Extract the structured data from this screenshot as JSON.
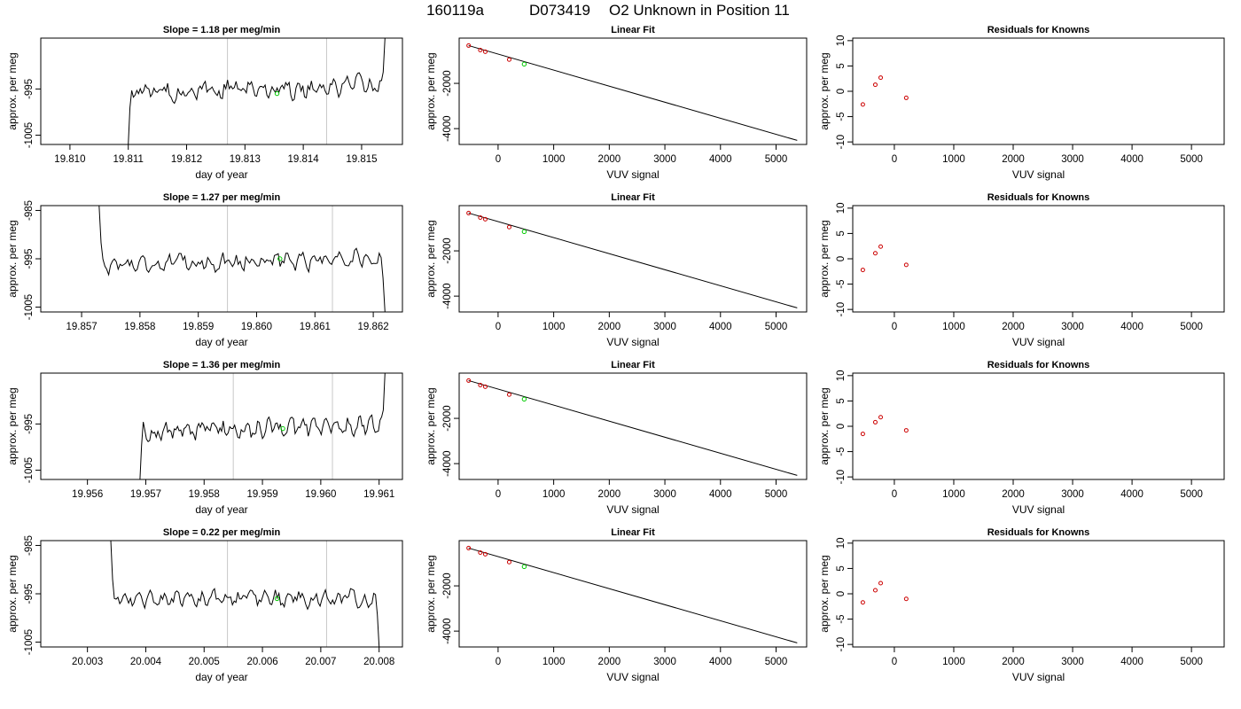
{
  "figure": {
    "title_run": "160119a",
    "title_sample": "D073419",
    "title_desc": "O2 Unknown in Position  11"
  },
  "colors": {
    "trace": "#000000",
    "known_points": "#cc0000",
    "unknown_point": "#00cc00",
    "marker_lines": "#c8c8c8",
    "fit_line": "#000000"
  },
  "rows": [
    {
      "time_panel": {
        "title": "Slope =  1.18  per meg/min",
        "xlabel": "day of year",
        "ylabel": "approx. per meg",
        "xticks": [
          "19.810",
          "19.811",
          "19.812",
          "19.813",
          "19.814",
          "19.815"
        ],
        "yticks": [
          "-1005",
          "-995"
        ]
      },
      "fit_panel": {
        "title": "Linear Fit",
        "xlabel": "VUV signal",
        "ylabel": "approx. per meg",
        "xticks": [
          "0",
          "1000",
          "2000",
          "3000",
          "4000",
          "5000"
        ],
        "yticks": [
          "-4000",
          "-2000"
        ]
      },
      "resid_panel": {
        "title": "Residuals for Knowns",
        "xlabel": "VUV signal",
        "ylabel": "approx. per meg",
        "xticks": [
          "0",
          "1000",
          "2000",
          "3000",
          "4000",
          "5000"
        ],
        "yticks": [
          "-10",
          "-5",
          "0",
          "5",
          "10"
        ]
      }
    },
    {
      "time_panel": {
        "title": "Slope =  1.27  per meg/min",
        "xlabel": "day of year",
        "ylabel": "approx. per meg",
        "xticks": [
          "19.857",
          "19.858",
          "19.859",
          "19.860",
          "19.861",
          "19.862"
        ],
        "yticks": [
          "-1005",
          "-995",
          "-985"
        ]
      },
      "fit_panel": {
        "title": "Linear Fit",
        "xlabel": "VUV signal",
        "ylabel": "approx. per meg",
        "xticks": [
          "0",
          "1000",
          "2000",
          "3000",
          "4000",
          "5000"
        ],
        "yticks": [
          "-4000",
          "-2000"
        ]
      },
      "resid_panel": {
        "title": "Residuals for Knowns",
        "xlabel": "VUV signal",
        "ylabel": "approx. per meg",
        "xticks": [
          "0",
          "1000",
          "2000",
          "3000",
          "4000",
          "5000"
        ],
        "yticks": [
          "-10",
          "-5",
          "0",
          "5",
          "10"
        ]
      }
    },
    {
      "time_panel": {
        "title": "Slope =  1.36  per meg/min",
        "xlabel": "day of year",
        "ylabel": "approx. per meg",
        "xticks": [
          "19.956",
          "19.957",
          "19.958",
          "19.959",
          "19.960",
          "19.961"
        ],
        "yticks": [
          "-1005",
          "-995"
        ]
      },
      "fit_panel": {
        "title": "Linear Fit",
        "xlabel": "VUV signal",
        "ylabel": "approx. per meg",
        "xticks": [
          "0",
          "1000",
          "2000",
          "3000",
          "4000",
          "5000"
        ],
        "yticks": [
          "-4000",
          "-2000"
        ]
      },
      "resid_panel": {
        "title": "Residuals for Knowns",
        "xlabel": "VUV signal",
        "ylabel": "approx. per meg",
        "xticks": [
          "0",
          "1000",
          "2000",
          "3000",
          "4000",
          "5000"
        ],
        "yticks": [
          "-10",
          "-5",
          "0",
          "5",
          "10"
        ]
      }
    },
    {
      "time_panel": {
        "title": "Slope =  0.22  per meg/min",
        "xlabel": "day of year",
        "ylabel": "approx. per meg",
        "xticks": [
          "20.003",
          "20.004",
          "20.005",
          "20.006",
          "20.007",
          "20.008"
        ],
        "yticks": [
          "-1005",
          "-995",
          "-985"
        ]
      },
      "fit_panel": {
        "title": "Linear Fit",
        "xlabel": "VUV signal",
        "ylabel": "approx. per meg",
        "xticks": [
          "0",
          "1000",
          "2000",
          "3000",
          "4000",
          "5000"
        ],
        "yticks": [
          "-4000",
          "-2000"
        ]
      },
      "resid_panel": {
        "title": "Residuals for Knowns",
        "xlabel": "VUV signal",
        "ylabel": "approx. per meg",
        "xticks": [
          "0",
          "1000",
          "2000",
          "3000",
          "4000",
          "5000"
        ],
        "yticks": [
          "-10",
          "-5",
          "0",
          "5",
          "10"
        ]
      }
    }
  ],
  "chart_data": [
    {
      "type": "line",
      "title": "Slope =  1.18  per meg/min",
      "xlabel": "day of year",
      "ylabel": "approx. per meg",
      "xlim": [
        19.8095,
        19.8157
      ],
      "ylim": [
        -1007,
        -984
      ],
      "trace_window": [
        19.811,
        19.8154
      ],
      "trace_level": -995,
      "trace_noise": 2.3,
      "trace_drift": 1.5,
      "trace_start": -1007,
      "trace_end": -984,
      "vlines": [
        19.8127,
        19.8144
      ],
      "unknown_point": {
        "x": 19.81355,
        "y": -996
      }
    },
    {
      "type": "line",
      "title": "Slope =  1.27  per meg/min",
      "xlabel": "day of year",
      "ylabel": "approx. per meg",
      "xlim": [
        19.8563,
        19.8625
      ],
      "ylim": [
        -1006,
        -984
      ],
      "trace_window": [
        19.8573,
        19.8622
      ],
      "trace_level": -995.5,
      "trace_noise": 2.0,
      "trace_drift": 1.5,
      "trace_start": -984,
      "trace_end": -1006,
      "vlines": [
        19.8595,
        19.8613
      ],
      "unknown_point": {
        "x": 19.8604,
        "y": -995
      }
    },
    {
      "type": "line",
      "title": "Slope =  1.36  per meg/min",
      "xlabel": "day of year",
      "ylabel": "approx. per meg",
      "xlim": [
        19.9552,
        19.9614
      ],
      "ylim": [
        -1007,
        -984
      ],
      "trace_window": [
        19.9569,
        19.9611
      ],
      "trace_level": -996,
      "trace_noise": 2.2,
      "trace_drift": 1.5,
      "trace_start": -1007,
      "trace_end": -984,
      "vlines": [
        19.9585,
        19.9602
      ],
      "unknown_point": {
        "x": 19.95935,
        "y": -996
      }
    },
    {
      "type": "line",
      "title": "Slope =  0.22  per meg/min",
      "xlabel": "day of year",
      "ylabel": "approx. per meg",
      "xlim": [
        20.0022,
        20.0084
      ],
      "ylim": [
        -1006,
        -984
      ],
      "trace_window": [
        20.0034,
        20.008
      ],
      "trace_level": -996,
      "trace_noise": 1.9,
      "trace_drift": 0.3,
      "trace_start": -984,
      "trace_end": -1006,
      "vlines": [
        20.0054,
        20.0071
      ],
      "unknown_point": {
        "x": 20.00625,
        "y": -996
      }
    },
    {
      "type": "scatter",
      "title": "Linear Fit",
      "xlabel": "VUV signal",
      "ylabel": "approx. per meg",
      "xlim": [
        -700,
        5550
      ],
      "ylim": [
        -4700,
        0
      ],
      "knowns": [
        {
          "x": -530,
          "y": -330
        },
        {
          "x": -320,
          "y": -530
        },
        {
          "x": -230,
          "y": -600
        },
        {
          "x": 200,
          "y": -950
        }
      ],
      "unknown": {
        "x": 470,
        "y": -1150
      },
      "fit_line": {
        "x": [
          -530,
          5380
        ],
        "y": [
          -330,
          -4520
        ]
      }
    },
    {
      "type": "scatter",
      "title": "Residuals for Knowns",
      "xlabel": "VUV signal",
      "ylabel": "approx. per meg",
      "xlim": [
        -700,
        5550
      ],
      "ylim": [
        -10.5,
        10.5
      ],
      "series": [
        {
          "x": [
            -530,
            -320,
            -230,
            200
          ],
          "y": [
            -2.6,
            1.3,
            2.7,
            -1.3
          ]
        },
        {
          "x": [
            -530,
            -320,
            -230,
            200
          ],
          "y": [
            -2.2,
            1.1,
            2.4,
            -1.2
          ]
        },
        {
          "x": [
            -530,
            -320,
            -230,
            200
          ],
          "y": [
            -1.5,
            0.8,
            1.8,
            -0.8
          ]
        },
        {
          "x": [
            -530,
            -320,
            -230,
            200
          ],
          "y": [
            -1.7,
            0.7,
            2.1,
            -1.0
          ]
        }
      ]
    }
  ]
}
